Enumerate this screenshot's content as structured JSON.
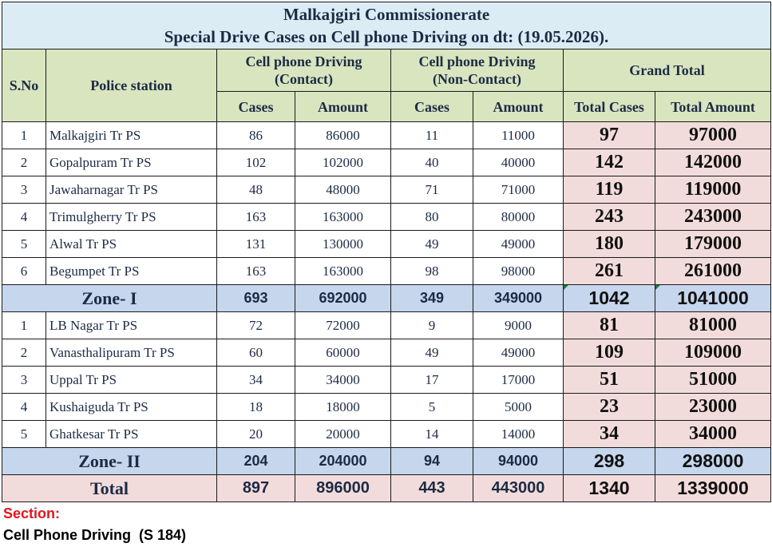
{
  "title": "Malkajgiri Commissionerate",
  "subtitle": "Special Drive Cases on Cell phone Driving on dt: (19.05.2026).",
  "headers": {
    "sno": "S.No",
    "station": "Police station",
    "contact": "Cell phone Driving",
    "contact_sub": "(Contact)",
    "noncontact": "Cell phone Driving",
    "noncontact_sub": "(Non-Contact)",
    "grand": "Grand Total",
    "cases": "Cases",
    "amount": "Amount",
    "total_cases": "Total Cases",
    "total_amount": "Total Amount"
  },
  "zone1": {
    "rows": [
      {
        "sno": "1",
        "ps": "Malkajgiri Tr PS",
        "c_cases": "86",
        "c_amt": "86000",
        "n_cases": "11",
        "n_amt": "11000",
        "t_cases": "97",
        "t_amt": "97000"
      },
      {
        "sno": "2",
        "ps": "Gopalpuram Tr PS",
        "c_cases": "102",
        "c_amt": "102000",
        "n_cases": "40",
        "n_amt": "40000",
        "t_cases": "142",
        "t_amt": "142000"
      },
      {
        "sno": "3",
        "ps": "Jawaharnagar Tr PS",
        "c_cases": "48",
        "c_amt": "48000",
        "n_cases": "71",
        "n_amt": "71000",
        "t_cases": "119",
        "t_amt": "119000"
      },
      {
        "sno": "4",
        "ps": "Trimulgherry Tr PS",
        "c_cases": "163",
        "c_amt": "163000",
        "n_cases": "80",
        "n_amt": "80000",
        "t_cases": "243",
        "t_amt": "243000"
      },
      {
        "sno": "5",
        "ps": "Alwal Tr PS",
        "c_cases": "131",
        "c_amt": "130000",
        "n_cases": "49",
        "n_amt": "49000",
        "t_cases": "180",
        "t_amt": "179000"
      },
      {
        "sno": "6",
        "ps": "Begumpet Tr PS",
        "c_cases": "163",
        "c_amt": "163000",
        "n_cases": "98",
        "n_amt": "98000",
        "t_cases": "261",
        "t_amt": "261000"
      }
    ],
    "total": {
      "label": "Zone- I",
      "c_cases": "693",
      "c_amt": "692000",
      "n_cases": "349",
      "n_amt": "349000",
      "t_cases": "1042",
      "t_amt": "1041000"
    }
  },
  "zone2": {
    "rows": [
      {
        "sno": "1",
        "ps": "LB Nagar Tr PS",
        "c_cases": "72",
        "c_amt": "72000",
        "n_cases": "9",
        "n_amt": "9000",
        "t_cases": "81",
        "t_amt": "81000"
      },
      {
        "sno": "2",
        "ps": "Vanasthalipuram Tr PS",
        "c_cases": "60",
        "c_amt": "60000",
        "n_cases": "49",
        "n_amt": "49000",
        "t_cases": "109",
        "t_amt": "109000"
      },
      {
        "sno": "3",
        "ps": "Uppal Tr PS",
        "c_cases": "34",
        "c_amt": "34000",
        "n_cases": "17",
        "n_amt": "17000",
        "t_cases": "51",
        "t_amt": "51000"
      },
      {
        "sno": "4",
        "ps": "Kushaiguda Tr PS",
        "c_cases": "18",
        "c_amt": "18000",
        "n_cases": "5",
        "n_amt": "5000",
        "t_cases": "23",
        "t_amt": "23000"
      },
      {
        "sno": "5",
        "ps": "Ghatkesar Tr PS",
        "c_cases": "20",
        "c_amt": "20000",
        "n_cases": "14",
        "n_amt": "14000",
        "t_cases": "34",
        "t_amt": "34000"
      }
    ],
    "total": {
      "label": "Zone- II",
      "c_cases": "204",
      "c_amt": "204000",
      "n_cases": "94",
      "n_amt": "94000",
      "t_cases": "298",
      "t_amt": "298000"
    }
  },
  "grand_total": {
    "label": "Total",
    "c_cases": "897",
    "c_amt": "896000",
    "n_cases": "443",
    "n_amt": "443000",
    "t_cases": "1340",
    "t_amt": "1339000"
  },
  "footer": {
    "section_label": "Section:",
    "act": "Cell Phone Driving  (S 184)"
  },
  "colors": {
    "title_bg": "#dcecf4",
    "header_bg": "#d9e5bf",
    "grand_bg": "#f2dcdb",
    "zone_bg": "#c5d6ed",
    "section_red": "#e3151c"
  }
}
